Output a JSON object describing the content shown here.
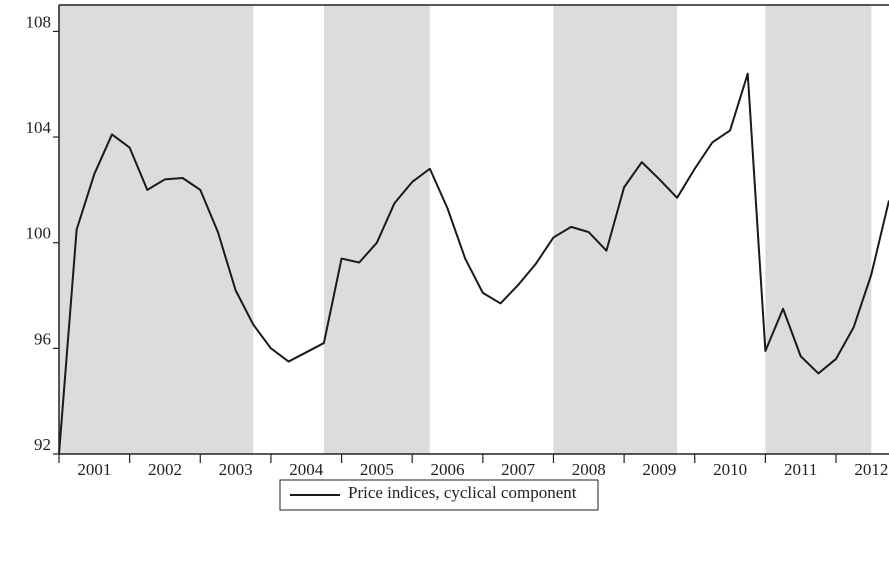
{
  "chart_data": {
    "type": "line",
    "x": [
      2001,
      2001.25,
      2001.5,
      2001.75,
      2002,
      2002.25,
      2002.5,
      2002.75,
      2003,
      2003.25,
      2003.5,
      2003.75,
      2004,
      2004.25,
      2004.5,
      2004.75,
      2005,
      2005.25,
      2005.5,
      2005.75,
      2006,
      2006.25,
      2006.5,
      2006.75,
      2007,
      2007.25,
      2007.5,
      2007.75,
      2008,
      2008.25,
      2008.5,
      2008.75,
      2009,
      2009.25,
      2009.5,
      2009.75,
      2010,
      2010.25,
      2010.5,
      2010.75,
      2011,
      2011.25,
      2011.5,
      2011.75,
      2012,
      2012.25,
      2012.5,
      2012.75
    ],
    "series": [
      {
        "name": "Price indices, cyclical component",
        "color": "#1a1a1a",
        "values": [
          92,
          100.5,
          102.6,
          104.1,
          103.6,
          102.0,
          102.4,
          102.45,
          102.0,
          100.4,
          98.2,
          96.9,
          96.0,
          95.5,
          95.85,
          96.2,
          99.4,
          99.25,
          100.0,
          101.5,
          102.3,
          102.8,
          101.3,
          99.4,
          98.1,
          97.7,
          98.4,
          99.2,
          100.2,
          100.6,
          100.4,
          99.7,
          102.1,
          103.05,
          102.4,
          101.7,
          102.8,
          103.8,
          104.25,
          106.4,
          95.9,
          97.5,
          95.7,
          95.05,
          95.6,
          96.8,
          98.8,
          101.6
        ]
      }
    ],
    "shaded": [
      [
        2001,
        2003.75
      ],
      [
        2004.75,
        2006.25
      ],
      [
        2008,
        2009.75
      ],
      [
        2011,
        2012.5
      ]
    ],
    "shade_color": "#dcdcdc",
    "xlim": [
      2001,
      2012.75
    ],
    "xticks": [
      2001,
      2002,
      2003,
      2004,
      2005,
      2006,
      2007,
      2008,
      2009,
      2010,
      2011,
      2012
    ],
    "ylim": [
      92,
      109
    ],
    "yticks": [
      92,
      96,
      100,
      104,
      108
    ],
    "legend": "bottom"
  }
}
